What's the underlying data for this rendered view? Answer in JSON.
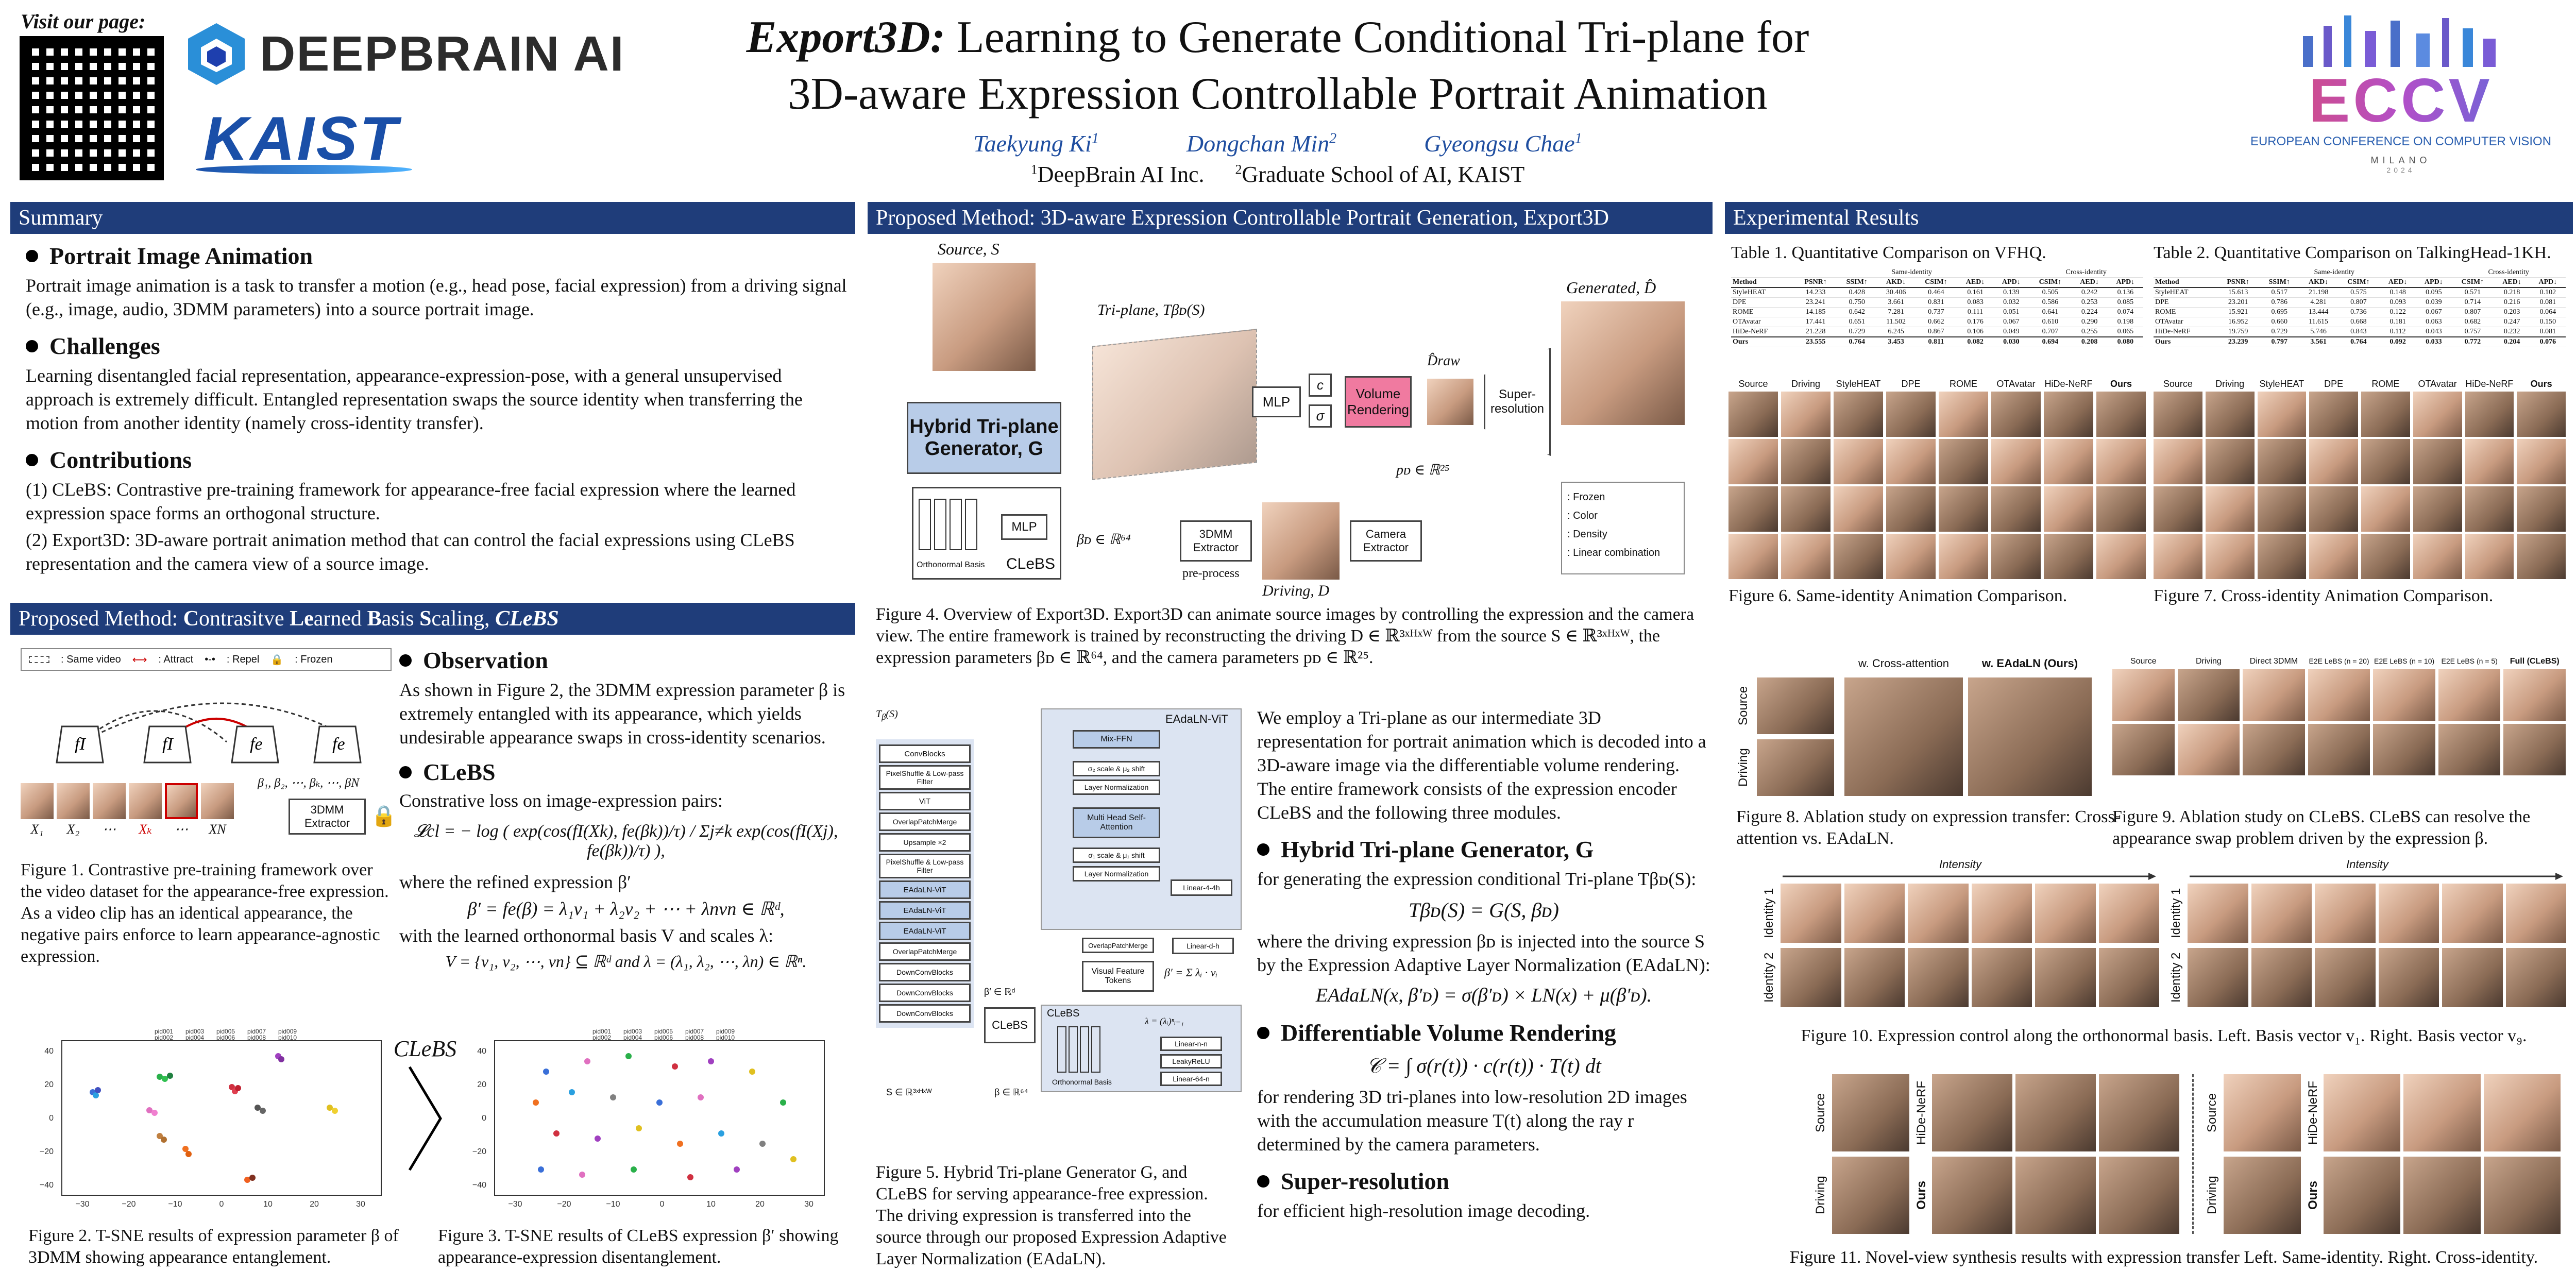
{
  "header": {
    "visit": "Visit our page:",
    "title_line1_em": "Export3D:",
    "title_line1_rest": " Learning to Generate Conditional Tri-plane for",
    "title_line2": "3D-aware Expression Controllable Portrait Animation",
    "authors": [
      "Taekyung Ki",
      "Dongchan Min",
      "Gyeongsu Chae"
    ],
    "author_sups": [
      "1",
      "2",
      "1"
    ],
    "affil1_sup": "1",
    "affil1": "DeepBrain AI Inc.",
    "affil2_sup": "2",
    "affil2": "Graduate School of AI, KAIST",
    "logo_deepbrain": "DEEPBRAIN AI",
    "logo_kaist": "KAIST",
    "logo_eccv": "ECCV",
    "eccv_full": "EUROPEAN CONFERENCE ON COMPUTER VISION",
    "eccv_city": "MILANO",
    "eccv_year": "2024"
  },
  "summary": {
    "bar": "Summary",
    "s1_title": "Portrait Image Animation",
    "s1_text": "Portrait image animation is a task to transfer a motion (e.g., head pose, facial expression) from a driving signal (e.g., image, audio, 3DMM parameters) into a source portrait image.",
    "s2_title": "Challenges",
    "s2_text": "Learning disentangled facial representation, appearance-expression-pose, with a general unsupervised approach is extremely difficult. Entangled representation swaps the source identity when transferring the motion from another identity (namely cross-identity transfer).",
    "s3_title": "Contributions",
    "c1": "(1) CLeBS: Contrastive pre-training framework for appearance-free facial expression where the learned expression space forms an orthogonal structure.",
    "c2": "(2) Export3D: 3D-aware portrait animation method that can control the facial expressions using CLeBS representation and the camera view of a source image."
  },
  "clebs": {
    "bar_pre": "Proposed Method: ",
    "bar_c": "C",
    "bar_1": "ontrasitve ",
    "bar_l": "Le",
    "bar_2": "arned ",
    "bar_b": "B",
    "bar_3": "asis ",
    "bar_s": "S",
    "bar_4": "caling, ",
    "bar_em": "CLeBS",
    "legend_same": ": Same video",
    "legend_attract": ": Attract",
    "legend_repel": ": Repel",
    "legend_frozen": ": Frozen",
    "extractor": "3DMM Extractor",
    "betas": "β₁, β₂, ⋯, βₖ, ⋯, βN",
    "xs": [
      "X₁",
      "X₂",
      "⋯",
      "Xₖ",
      "⋯",
      "XN"
    ],
    "fig1_caption": "Figure 1. Contrastive pre-training framework over the video dataset for the appearance-free expression. As a video clip has an identical appearance, the negative pairs enforce to learn appearance-agnostic expression.",
    "obs_title": "Observation",
    "obs_text": "As shown in Figure 2, the 3DMM expression parameter β is extremely entangled with its appearance, which yields undesirable appearance swaps in cross-identity scenarios.",
    "clebs_title": "CLeBS",
    "clebs_text1": "Constrative loss on image-expression pairs:",
    "loss": "𝓛cl = − log ( exp(cos(fI(Xk), fe(βk))/τ) / Σj≠k exp(cos(fI(Xj), fe(βk))/τ) ),",
    "refined": "where the refined expression β′",
    "beta_eq": "β′ = fe(β) = λ₁v₁ + λ₂v₂ + ⋯ + λnvn ∈ ℝᵈ,",
    "basis_text": "with the learned orthonormal basis V and scales λ:",
    "basis_eq": "V = {v₁, v₂, ⋯, vn} ⊆ ℝᵈ  and  λ = (λ₁, λ₂, ⋯, λn) ∈ ℝⁿ.",
    "arrow_label": "CLeBS",
    "fig2_caption": "Figure 2. T-SNE results of expression parameter β of 3DMM showing appearance entanglement.",
    "fig3_caption": "Figure 3. T-SNE results of CLeBS expression β′ showing appearance-expression disentanglement.",
    "tsne_legend": [
      "pid001",
      "pid002",
      "pid003",
      "pid004",
      "pid005",
      "pid006",
      "pid007",
      "pid008",
      "pid009",
      "pid010"
    ],
    "tsne_xticks": [
      "−30",
      "−20",
      "−10",
      "0",
      "10",
      "20",
      "30"
    ],
    "tsne_yticks": [
      "40",
      "20",
      "0",
      "−20",
      "−40"
    ]
  },
  "export3d": {
    "bar": "Proposed Method: 3D-aware Expression Controllable Portrait Generation, Export3D",
    "source": "Source, S",
    "triplane": "Tri-plane, Tβᴅ(S)",
    "generator": "Hybrid Tri-plane Generator, G",
    "mlp": "MLP",
    "c": "c",
    "sigma": "σ",
    "volume": "Volume Rendering",
    "draw": "D̂raw",
    "superres": "Super-resolution",
    "generated": "Generated, D̂",
    "pd": "pᴅ ∈ ℝ²⁵",
    "beta_d": "βᴅ ∈ ℝ⁶⁴",
    "extractor": "3DMM Extractor",
    "preprocess": "pre-process",
    "driving": "Driving, D",
    "camera": "Camera Extractor",
    "clebs": "CLeBS",
    "ortho": "Orthonormal Basis",
    "legend": [
      ": Frozen",
      ": Color",
      ": Density",
      ": Linear combination"
    ],
    "fig4_caption": "Figure 4. Overview of Export3D. Export3D can animate source images by controlling the expression and the camera view. The entire framework is trained by reconstructing the driving D ∈ ℝ³ˣᴴˣᵂ from the source S ∈ ℝ³ˣᴴˣᵂ, the expression parameters βᴅ ∈ ℝ⁶⁴, and the camera parameters pᴅ ∈ ℝ²⁵.",
    "blocks": [
      "ConvBlocks",
      "PixelShuffle & Low-pass Filter",
      "ViT",
      "OverlapPatchMerge",
      "Upsample ×2",
      "PixelShuffle & Low-pass Filter",
      "EAdaLN-ViT",
      "EAdaLN-ViT",
      "EAdaLN-ViT",
      "OverlapPatchMerge",
      "DownConvBlocks",
      "DownConvBlocks",
      "DownConvBlocks"
    ],
    "vit_title": "EAdaLN-ViT",
    "vit_blocks": [
      "Mix-FFN",
      "σ₂ scale & μ₂ shift",
      "Layer Normalization",
      "Multi Head Self-Attention",
      "σ₁ scale & μ₁ shift",
      "Layer Normalization"
    ],
    "vit_side": [
      "Linear-4-4h",
      "Linear-d-h",
      "OverlapPatchMerge",
      "Visual Feature Tokens"
    ],
    "clebs_side": [
      "Linear-n-n",
      "LeakyReLU",
      "Linear-64-n"
    ],
    "s_label": "S ∈ ℝ³ˣᴴˣᵂ",
    "beta_label": "β ∈ ℝ⁶⁴",
    "betap_label": "β′ ∈ ℝᵈ",
    "beta_sum": "β′ = Σ λᵢ · vᵢ",
    "lambda_label": "λ = (λᵢ)ⁿᵢ₌₁",
    "fig5_caption": "Figure 5. Hybrid Tri-plane Generator G, and CLeBS for serving appearance-free expression. The driving expression is transferred into the source through our proposed Expression Adaptive Layer Normalization (EAdaLN).",
    "intro": "We employ a Tri-plane as our intermediate 3D representation for portrait animation which is decoded into a 3D-aware image via the differentiable volume rendering. The entire framework consists of the expression encoder CLeBS and the following three modules.",
    "h1": "Hybrid Tri-plane Generator, G",
    "h1_text": "for generating the expression conditional Tri-plane Tβᴅ(S):",
    "h1_eq": "Tβᴅ(S) = G(S, βᴅ)",
    "h1_text2": "where the driving expression βᴅ is injected into the source S by the Expression Adaptive Layer Normalization (EAdaLN):",
    "h1_eq2": "EAdaLN(x, β′ᴅ) = σ(β′ᴅ) × LN(x) + μ(β′ᴅ).",
    "h2": "Differentiable Volume Rendering",
    "h2_eq": "𝒞 = ∫ σ(r(t)) · c(r(t)) · T(t) dt",
    "h2_text": "for rendering 3D tri-planes into low-resolution 2D images with the accumulation measure T(t) along the ray r determined by the camera parameters.",
    "h3": "Super-resolution",
    "h3_text": "for efficient high-resolution image decoding."
  },
  "results": {
    "bar": "Experimental Results",
    "t1_caption": "Table 1. Quantitative Comparison on VFHQ.",
    "t2_caption": "Table 2. Quantitative Comparison on TalkingHead-1KH.",
    "t_head": [
      "Method",
      "PSNR↑",
      "SSIM↑",
      "AKD↓",
      "CSIM↑",
      "AED↓",
      "APD↓",
      "CSIM↑",
      "AED↓",
      "APD↓"
    ],
    "t_group": [
      "Same-identity",
      "Cross-identity"
    ],
    "t1_rows": [
      [
        "StyleHEAT",
        "14.233",
        "0.428",
        "30.406",
        "0.464",
        "0.161",
        "0.139",
        "0.505",
        "0.242",
        "0.136"
      ],
      [
        "DPE",
        "23.241",
        "0.750",
        "3.661",
        "0.831",
        "0.083",
        "0.032",
        "0.586",
        "0.253",
        "0.085"
      ],
      [
        "ROME",
        "14.185",
        "0.642",
        "7.281",
        "0.737",
        "0.111",
        "0.051",
        "0.641",
        "0.224",
        "0.074"
      ],
      [
        "OTAvatar",
        "17.441",
        "0.651",
        "11.502",
        "0.662",
        "0.176",
        "0.067",
        "0.610",
        "0.290",
        "0.198"
      ],
      [
        "HiDe-NeRF",
        "21.228",
        "0.729",
        "6.245",
        "0.867",
        "0.106",
        "0.049",
        "0.707",
        "0.255",
        "0.065"
      ]
    ],
    "t1_best": [
      "Ours",
      "23.555",
      "0.764",
      "3.453",
      "0.811",
      "0.082",
      "0.030",
      "0.694",
      "0.208",
      "0.080"
    ],
    "t2_rows": [
      [
        "StyleHEAT",
        "15.613",
        "0.517",
        "21.198",
        "0.575",
        "0.148",
        "0.095",
        "0.571",
        "0.218",
        "0.102"
      ],
      [
        "DPE",
        "23.201",
        "0.786",
        "4.281",
        "0.807",
        "0.093",
        "0.039",
        "0.714",
        "0.216",
        "0.081"
      ],
      [
        "ROME",
        "15.921",
        "0.695",
        "13.444",
        "0.736",
        "0.122",
        "0.067",
        "0.807",
        "0.203",
        "0.064"
      ],
      [
        "OTAvatar",
        "16.952",
        "0.660",
        "11.615",
        "0.668",
        "0.181",
        "0.063",
        "0.682",
        "0.247",
        "0.150"
      ],
      [
        "HiDe-NeRF",
        "19.759",
        "0.729",
        "5.746",
        "0.843",
        "0.112",
        "0.043",
        "0.757",
        "0.232",
        "0.081"
      ]
    ],
    "t2_best": [
      "Ours",
      "23.239",
      "0.797",
      "3.561",
      "0.764",
      "0.092",
      "0.033",
      "0.772",
      "0.204",
      "0.076"
    ],
    "grid_labels": [
      "Source",
      "Driving",
      "StyleHEAT",
      "DPE",
      "ROME",
      "OTAvatar",
      "HiDe-NeRF",
      "Ours"
    ],
    "fig6_caption": "Figure 6. Same-identity Animation Comparison.",
    "fig7_caption": "Figure 7. Cross-identity Animation Comparison.",
    "fig8_labels": [
      "w. Cross-attention",
      "w. EAdaLN (Ours)",
      "Source",
      "Driving"
    ],
    "fig8_caption": "Figure 8. Ablation study on expression transfer: Cross-attention vs. EAdaLN.",
    "fig9_labels": [
      "Source",
      "Driving",
      "Direct 3DMM",
      "E2E LeBS (n = 20)",
      "E2E LeBS (n = 10)",
      "E2E LeBS (n = 5)",
      "Full (CLeBS)"
    ],
    "fig9_caption": "Figure 9. Ablation study on CLeBS. CLeBS can resolve the appearance swap problem driven by the expression β.",
    "fig10_intensity": "Intensity",
    "fig10_ids": [
      "Identity 1",
      "Identity 2"
    ],
    "fig10_caption": "Figure 10. Expression control along the orthonormal basis. Left. Basis vector v₁. Right. Basis vector v₉.",
    "fig11_labels": [
      "Source",
      "Driving",
      "HiDe-NeRF",
      "Ours"
    ],
    "fig11_caption": "Figure 11. Novel-view synthesis results with expression transfer Left. Same-identity. Right. Cross-identity."
  }
}
